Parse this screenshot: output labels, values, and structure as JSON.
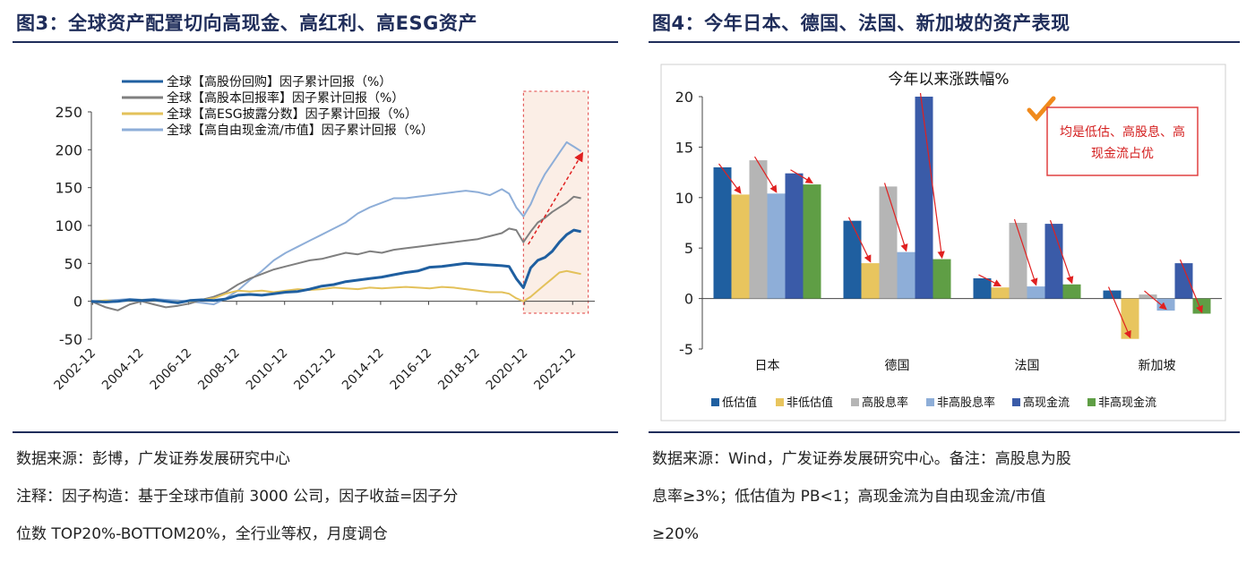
{
  "left": {
    "fig_title": "图3：全球资产配置切向高现金、高红利、高ESG资产",
    "source": "数据来源：彭博，广发证券发展研究中心",
    "note_line1": "注释：因子构造：基于全球市值前 3000 公司，因子收益=因子分",
    "note_line2": "位数 TOP20%-BOTTOM20%，全行业等权，月度调仓"
  },
  "right": {
    "fig_title": "图4：今年日本、德国、法国、新加坡的资产表现",
    "source_line1": "数据来源：Wind，广发证券发展研究中心。备注：高股息为股",
    "source_line2": "息率≥3%；低估值为 PB<1；高现金流为自由现金流/市值",
    "source_line3": "≥20%"
  },
  "chart_data": [
    {
      "type": "line",
      "title": "",
      "xlabel": "",
      "ylabel": "",
      "ylim": [
        -50,
        250
      ],
      "yticks": [
        -50,
        0,
        50,
        100,
        150,
        200,
        250
      ],
      "xlim": [
        2002.9,
        2023.5
      ],
      "xticks": [
        "2002-12",
        "2004-12",
        "2006-12",
        "2008-12",
        "2010-12",
        "2012-12",
        "2014-12",
        "2016-12",
        "2018-12",
        "2020-12",
        "2022-12"
      ],
      "legend_position": "top-left",
      "highlight_region": [
        2020.9,
        2023.6
      ],
      "grid": false,
      "series": [
        {
          "name": "全球【高股份回购】因子累计回报（%）",
          "color": "#1f5fa0",
          "x": [
            2002.9,
            2003.5,
            2004.0,
            2004.5,
            2005.0,
            2005.5,
            2006.0,
            2006.5,
            2007.0,
            2007.5,
            2008.0,
            2008.5,
            2009.0,
            2009.5,
            2010.0,
            2010.5,
            2011.0,
            2011.5,
            2012.0,
            2012.5,
            2013.0,
            2013.5,
            2014.0,
            2014.5,
            2015.0,
            2015.5,
            2016.0,
            2016.5,
            2017.0,
            2017.5,
            2018.0,
            2018.5,
            2019.0,
            2019.5,
            2020.0,
            2020.3,
            2020.6,
            2020.9,
            2021.2,
            2021.5,
            2021.8,
            2022.1,
            2022.4,
            2022.7,
            2023.0,
            2023.3
          ],
          "values": [
            0,
            -1,
            0,
            2,
            1,
            2,
            0,
            -2,
            1,
            2,
            1,
            3,
            8,
            9,
            8,
            10,
            12,
            13,
            16,
            20,
            22,
            26,
            28,
            30,
            32,
            35,
            38,
            40,
            45,
            46,
            48,
            50,
            49,
            48,
            47,
            46,
            30,
            18,
            44,
            54,
            58,
            66,
            78,
            88,
            94,
            92
          ]
        },
        {
          "name": "全球【高股本回报率】因子累计回报（%）",
          "color": "#7f7f7f",
          "x": [
            2002.9,
            2003.5,
            2004.0,
            2004.5,
            2005.0,
            2005.5,
            2006.0,
            2006.5,
            2007.0,
            2007.5,
            2008.0,
            2008.5,
            2009.0,
            2009.5,
            2010.0,
            2010.5,
            2011.0,
            2011.5,
            2012.0,
            2012.5,
            2013.0,
            2013.5,
            2014.0,
            2014.5,
            2015.0,
            2015.5,
            2016.0,
            2016.5,
            2017.0,
            2017.5,
            2018.0,
            2018.5,
            2019.0,
            2019.5,
            2020.0,
            2020.3,
            2020.6,
            2020.9,
            2021.2,
            2021.5,
            2021.8,
            2022.1,
            2022.4,
            2022.7,
            2023.0,
            2023.3
          ],
          "values": [
            0,
            -8,
            -12,
            -4,
            0,
            -4,
            -8,
            -6,
            -3,
            2,
            6,
            12,
            22,
            30,
            36,
            42,
            46,
            50,
            54,
            56,
            60,
            64,
            62,
            66,
            64,
            68,
            70,
            72,
            74,
            76,
            78,
            80,
            82,
            86,
            90,
            96,
            94,
            78,
            92,
            104,
            110,
            118,
            124,
            130,
            138,
            136
          ]
        },
        {
          "name": "全球【高ESG披露分数】因子累计回报（%）",
          "color": "#e3c15a",
          "x": [
            2002.9,
            2003.5,
            2004.0,
            2004.5,
            2005.0,
            2005.5,
            2006.0,
            2006.5,
            2007.0,
            2007.5,
            2008.0,
            2008.5,
            2009.0,
            2009.5,
            2010.0,
            2010.5,
            2011.0,
            2011.5,
            2012.0,
            2012.5,
            2013.0,
            2013.5,
            2014.0,
            2014.5,
            2015.0,
            2015.5,
            2016.0,
            2016.5,
            2017.0,
            2017.5,
            2018.0,
            2018.5,
            2019.0,
            2019.5,
            2020.0,
            2020.3,
            2020.6,
            2020.9,
            2021.2,
            2021.5,
            2021.8,
            2022.1,
            2022.4,
            2022.7,
            2023.0,
            2023.3
          ],
          "values": [
            0,
            1,
            0,
            1,
            2,
            1,
            0,
            -1,
            0,
            2,
            4,
            10,
            14,
            13,
            14,
            12,
            14,
            16,
            15,
            16,
            18,
            17,
            16,
            18,
            17,
            18,
            19,
            18,
            17,
            19,
            18,
            16,
            14,
            12,
            12,
            10,
            4,
            0,
            6,
            14,
            22,
            30,
            38,
            40,
            38,
            36
          ]
        },
        {
          "name": "全球【高自由现金流/市值】因子累计回报（%）",
          "color": "#8eaed8",
          "x": [
            2002.9,
            2003.5,
            2004.0,
            2004.5,
            2005.0,
            2005.5,
            2006.0,
            2006.5,
            2007.0,
            2007.5,
            2008.0,
            2008.5,
            2009.0,
            2009.5,
            2010.0,
            2010.5,
            2011.0,
            2011.5,
            2012.0,
            2012.5,
            2013.0,
            2013.5,
            2014.0,
            2014.5,
            2015.0,
            2015.5,
            2016.0,
            2016.5,
            2017.0,
            2017.5,
            2018.0,
            2018.5,
            2019.0,
            2019.5,
            2020.0,
            2020.3,
            2020.6,
            2020.9,
            2021.2,
            2021.5,
            2021.8,
            2022.1,
            2022.4,
            2022.7,
            2023.0,
            2023.3
          ],
          "values": [
            0,
            1,
            2,
            3,
            2,
            3,
            2,
            1,
            0,
            -2,
            -4,
            4,
            14,
            28,
            40,
            54,
            64,
            72,
            80,
            88,
            96,
            104,
            116,
            124,
            130,
            136,
            136,
            138,
            140,
            142,
            144,
            146,
            144,
            140,
            148,
            142,
            124,
            112,
            128,
            150,
            168,
            182,
            196,
            210,
            204,
            198
          ]
        }
      ]
    },
    {
      "type": "bar",
      "title": "今年以来涨跌幅%",
      "xlabel": "",
      "ylabel": "",
      "ylim": [
        -5,
        20
      ],
      "yticks": [
        -5,
        0,
        5,
        10,
        15,
        20
      ],
      "categories": [
        "日本",
        "德国",
        "法国",
        "新加坡"
      ],
      "legend_position": "bottom",
      "grid": false,
      "annotation": "均是低估、高股息、高现金流占优",
      "series": [
        {
          "name": "低估值",
          "color": "#1f5fa0",
          "values": [
            13.0,
            7.7,
            2.0,
            0.8
          ]
        },
        {
          "name": "非低估值",
          "color": "#e8c55e",
          "values": [
            10.3,
            3.5,
            1.1,
            -4.0
          ]
        },
        {
          "name": "高股息率",
          "color": "#b5b5b5",
          "values": [
            13.7,
            11.1,
            7.5,
            0.4
          ]
        },
        {
          "name": "非高股息率",
          "color": "#8eaed8",
          "values": [
            10.4,
            4.6,
            1.2,
            -1.2
          ]
        },
        {
          "name": "高现金流",
          "color": "#3a5ba8",
          "values": [
            12.4,
            20.0,
            7.4,
            3.5
          ]
        },
        {
          "name": "非高现金流",
          "color": "#5f9e45",
          "values": [
            11.3,
            3.9,
            1.4,
            -1.5
          ]
        }
      ]
    }
  ]
}
